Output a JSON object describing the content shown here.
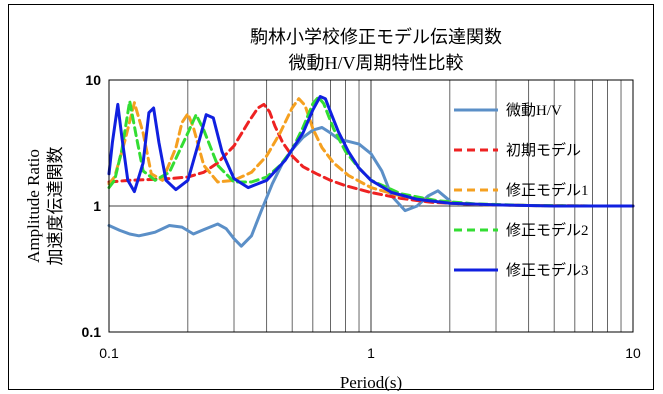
{
  "chart_data": {
    "type": "line",
    "title_lines": [
      "駒林小学校修正モデル伝達関数",
      "微動H/V周期特性比較"
    ],
    "xlabel": "Period(s)",
    "ylabel_lines": [
      "Amplitude Ratio",
      "加速度伝達関数"
    ],
    "x_scale": "log",
    "y_scale": "log",
    "xlim": [
      0.1,
      10
    ],
    "ylim": [
      0.1,
      10
    ],
    "x_ticks": [
      "0.1",
      "1",
      "10"
    ],
    "y_ticks": [
      "0.1",
      "1",
      "10"
    ],
    "grid": true,
    "legend_position": "right",
    "series": [
      {
        "name": "微動H/V",
        "color": "#5b8fc7",
        "dash": "solid",
        "x": [
          0.1,
          0.11,
          0.12,
          0.13,
          0.14,
          0.15,
          0.17,
          0.19,
          0.21,
          0.23,
          0.26,
          0.28,
          0.3,
          0.32,
          0.35,
          0.38,
          0.42,
          0.46,
          0.5,
          0.55,
          0.6,
          0.65,
          0.7,
          0.75,
          0.8,
          0.9,
          1.0,
          1.1,
          1.2,
          1.35,
          1.5,
          1.65,
          1.8,
          2.0
        ],
        "y": [
          0.7,
          0.64,
          0.6,
          0.58,
          0.6,
          0.62,
          0.7,
          0.68,
          0.6,
          0.65,
          0.72,
          0.66,
          0.55,
          0.48,
          0.58,
          0.9,
          1.5,
          2.2,
          2.8,
          3.5,
          4.0,
          4.2,
          3.8,
          3.4,
          3.3,
          3.1,
          2.6,
          1.9,
          1.2,
          0.92,
          1.0,
          1.2,
          1.32,
          1.1
        ]
      },
      {
        "name": "初期モデル",
        "color": "#ee2222",
        "dash": "8,5",
        "x": [
          0.1,
          0.12,
          0.14,
          0.17,
          0.2,
          0.23,
          0.26,
          0.3,
          0.34,
          0.37,
          0.39,
          0.41,
          0.43,
          0.46,
          0.5,
          0.55,
          0.62,
          0.7,
          0.8,
          1.0,
          1.3,
          1.7,
          2.5,
          4,
          7,
          10
        ],
        "y": [
          1.55,
          1.6,
          1.62,
          1.65,
          1.7,
          1.85,
          2.2,
          3.0,
          4.6,
          6.0,
          6.4,
          5.6,
          4.3,
          3.2,
          2.5,
          2.05,
          1.8,
          1.6,
          1.45,
          1.28,
          1.15,
          1.07,
          1.03,
          1.01,
          1.0,
          1.0
        ]
      },
      {
        "name": "修正モデル1",
        "color": "#f5a020",
        "dash": "8,5",
        "x": [
          0.1,
          0.105,
          0.115,
          0.125,
          0.135,
          0.145,
          0.16,
          0.18,
          0.19,
          0.2,
          0.21,
          0.23,
          0.26,
          0.3,
          0.35,
          0.4,
          0.45,
          0.5,
          0.53,
          0.56,
          0.6,
          0.65,
          0.72,
          0.82,
          1.0,
          1.3,
          1.8,
          2.5,
          4,
          7,
          10
        ],
        "y": [
          1.5,
          1.7,
          3.3,
          6.6,
          3.8,
          1.8,
          1.6,
          2.9,
          4.6,
          5.4,
          4.2,
          2.1,
          1.55,
          1.6,
          1.85,
          2.5,
          3.8,
          6.0,
          7.1,
          6.3,
          4.1,
          2.9,
          2.2,
          1.75,
          1.4,
          1.2,
          1.08,
          1.03,
          1.01,
          1.0,
          1.0
        ]
      },
      {
        "name": "修正モデル2",
        "color": "#33dd33",
        "dash": "8,5",
        "x": [
          0.1,
          0.105,
          0.112,
          0.12,
          0.127,
          0.135,
          0.15,
          0.17,
          0.2,
          0.215,
          0.23,
          0.26,
          0.3,
          0.35,
          0.4,
          0.45,
          0.5,
          0.55,
          0.6,
          0.63,
          0.66,
          0.72,
          0.8,
          0.9,
          1.0,
          1.3,
          1.8,
          2.5,
          4,
          7,
          10
        ],
        "y": [
          1.4,
          1.6,
          2.8,
          6.8,
          3.6,
          1.9,
          1.6,
          1.85,
          3.8,
          5.3,
          4.0,
          2.1,
          1.55,
          1.55,
          1.7,
          2.1,
          2.8,
          4.2,
          6.5,
          7.3,
          6.5,
          4.1,
          2.7,
          2.0,
          1.6,
          1.25,
          1.1,
          1.04,
          1.01,
          1.0,
          1.0
        ]
      },
      {
        "name": "修正モデル3",
        "color": "#1020e0",
        "dash": "solid",
        "x": [
          0.1,
          0.103,
          0.108,
          0.112,
          0.118,
          0.125,
          0.135,
          0.142,
          0.148,
          0.155,
          0.165,
          0.18,
          0.2,
          0.22,
          0.235,
          0.25,
          0.27,
          0.3,
          0.34,
          0.4,
          0.47,
          0.55,
          0.6,
          0.64,
          0.67,
          0.7,
          0.75,
          0.82,
          0.9,
          1.0,
          1.2,
          1.5,
          2.0,
          3,
          5,
          10
        ],
        "y": [
          1.8,
          3.2,
          6.4,
          3.5,
          1.6,
          1.3,
          2.2,
          5.5,
          6.0,
          3.2,
          1.6,
          1.35,
          1.6,
          3.2,
          5.3,
          5.0,
          2.7,
          1.65,
          1.4,
          1.6,
          2.3,
          3.8,
          5.8,
          7.4,
          7.1,
          5.6,
          3.9,
          2.7,
          2.0,
          1.6,
          1.28,
          1.13,
          1.05,
          1.02,
          1.0,
          1.0
        ]
      }
    ]
  }
}
